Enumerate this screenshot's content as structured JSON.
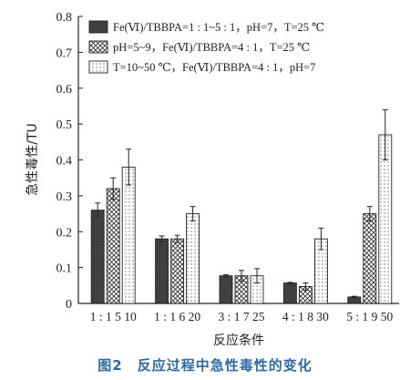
{
  "caption": "图2　反应过程中急性毒性的变化",
  "chart_data": {
    "type": "bar",
    "ylabel": "急性毒性/TU",
    "xlabel": "反应条件",
    "ylim": [
      0,
      0.8
    ],
    "yticks": [
      "0",
      "0.1",
      "0.2",
      "0.3",
      "0.4",
      "0.5",
      "0.6",
      "0.7",
      "0.8"
    ],
    "ytick_values": [
      0,
      0.1,
      0.2,
      0.3,
      0.4,
      0.5,
      0.6,
      0.7,
      0.8
    ],
    "legend_position": "top-left",
    "grid": false,
    "groups": [
      {
        "series_index": 0,
        "label": "1 : 1 5 10",
        "values": [
          0.26,
          0.32,
          0.38
        ],
        "errors": [
          0.02,
          0.03,
          0.05
        ]
      },
      {
        "series_index": 0,
        "label": "1 : 1 6 20",
        "values": [
          0.18,
          0.18,
          0.25
        ],
        "errors": [
          0.008,
          0.01,
          0.02
        ]
      },
      {
        "series_index": 0,
        "label": "3 : 1 7 25",
        "values": [
          0.077,
          0.077,
          0.077
        ],
        "errors": [
          0.003,
          0.015,
          0.02
        ]
      },
      {
        "series_index": 0,
        "label": "4 : 1 8 30",
        "values": [
          0.057,
          0.047,
          0.18
        ],
        "errors": [
          0.002,
          0.01,
          0.03
        ]
      },
      {
        "series_index": 0,
        "label": "5 : 1 9 50",
        "values": [
          0.018,
          0.25,
          0.47
        ],
        "errors": [
          0.002,
          0.02,
          0.07
        ]
      }
    ],
    "series": [
      {
        "name": "Fe(Ⅵ)/TBBPA=1 : 1~5 : 1，pH=7，T=25 ℃",
        "pattern": "dark-hatch"
      },
      {
        "name": "pH=5~9，Fe(Ⅵ)/TBBPA=4 : 1，T=25 ℃",
        "pattern": "cross-hatch"
      },
      {
        "name": "T=10~50 ℃，Fe(Ⅵ)/TBBPA=4 : 1，pH=7",
        "pattern": "dots"
      }
    ]
  }
}
